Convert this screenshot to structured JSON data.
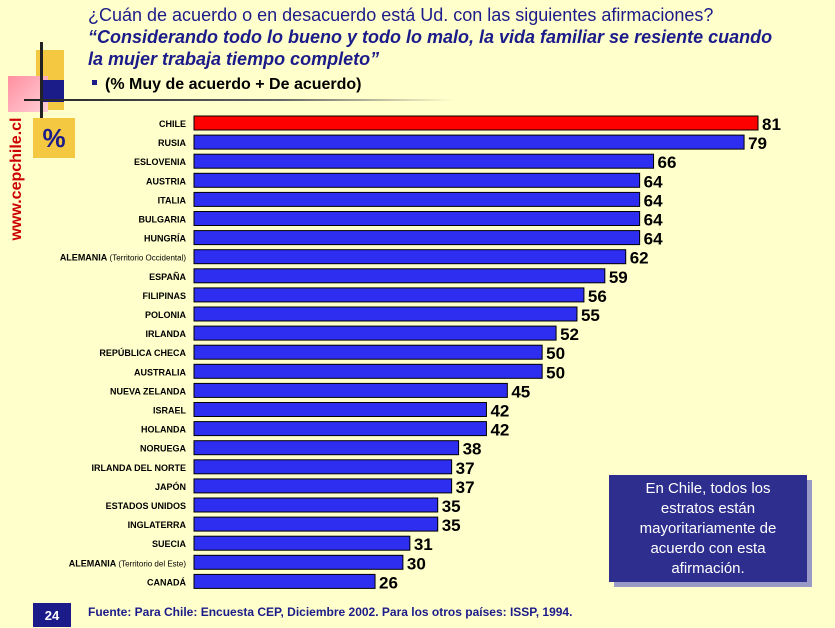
{
  "header": {
    "question": "¿Cuán de acuerdo o en desacuerdo está Ud. con las siguientes afirmaciones?",
    "quote": "“Considerando todo lo bueno y todo lo malo, la vida familiar se resiente cuando la mujer trabaja tiempo completo”",
    "subtitle": "(% Muy de acuerdo + De acuerdo)"
  },
  "branding": {
    "percent_label": "%",
    "site": "www.cepchile.cl"
  },
  "colors": {
    "highlight_bar": "#ff0000",
    "bar": "#2e2ef0",
    "accent": "#1b1b8a"
  },
  "chart_data": {
    "type": "bar",
    "orientation": "horizontal",
    "title": "(% Muy de acuerdo + De acuerdo)",
    "xlabel": "",
    "ylabel": "",
    "xlim": [
      0,
      81
    ],
    "categories": [
      "CHILE",
      "RUSIA",
      "ESLOVENIA",
      "AUSTRIA",
      "ITALIA",
      "BULGARIA",
      "HUNGRÍA",
      "ALEMANIA (Territorio Occidental)",
      "ESPAÑA",
      "FILIPINAS",
      "POLONIA",
      "IRLANDA",
      "REPÚBLICA CHECA",
      "AUSTRALIA",
      "NUEVA ZELANDA",
      "ISRAEL",
      "HOLANDA",
      "NORUEGA",
      "IRLANDA DEL NORTE",
      "JAPÓN",
      "ESTADOS UNIDOS",
      "INGLATERRA",
      "SUECIA",
      "ALEMANIA (Territorio del Este)",
      "CANADÁ"
    ],
    "label_main": [
      "CHILE",
      "RUSIA",
      "ESLOVENIA",
      "AUSTRIA",
      "ITALIA",
      "BULGARIA",
      "HUNGRÍA",
      "ALEMANIA",
      "ESPAÑA",
      "FILIPINAS",
      "POLONIA",
      "IRLANDA",
      "REPÚBLICA CHECA",
      "AUSTRALIA",
      "NUEVA ZELANDA",
      "ISRAEL",
      "HOLANDA",
      "NORUEGA",
      "IRLANDA DEL NORTE",
      "JAPÓN",
      "ESTADOS UNIDOS",
      "INGLATERRA",
      "SUECIA",
      "ALEMANIA",
      "CANADÁ"
    ],
    "label_note": [
      "",
      "",
      "",
      "",
      "",
      "",
      "",
      "(Territorio Occidental)",
      "",
      "",
      "",
      "",
      "",
      "",
      "",
      "",
      "",
      "",
      "",
      "",
      "",
      "",
      "",
      "(Territorio del Este)",
      ""
    ],
    "values": [
      81,
      79,
      66,
      64,
      64,
      64,
      64,
      62,
      59,
      56,
      55,
      52,
      50,
      50,
      45,
      42,
      42,
      38,
      37,
      37,
      35,
      35,
      31,
      30,
      26
    ],
    "highlight": "CHILE"
  },
  "note": "En Chile, todos los estratos están mayoritariamente de acuerdo con esta afirmación.",
  "footer": {
    "page": "24",
    "source": "Fuente: Para Chile: Encuesta CEP, Diciembre 2002. Para los otros países: ISSP, 1994."
  }
}
